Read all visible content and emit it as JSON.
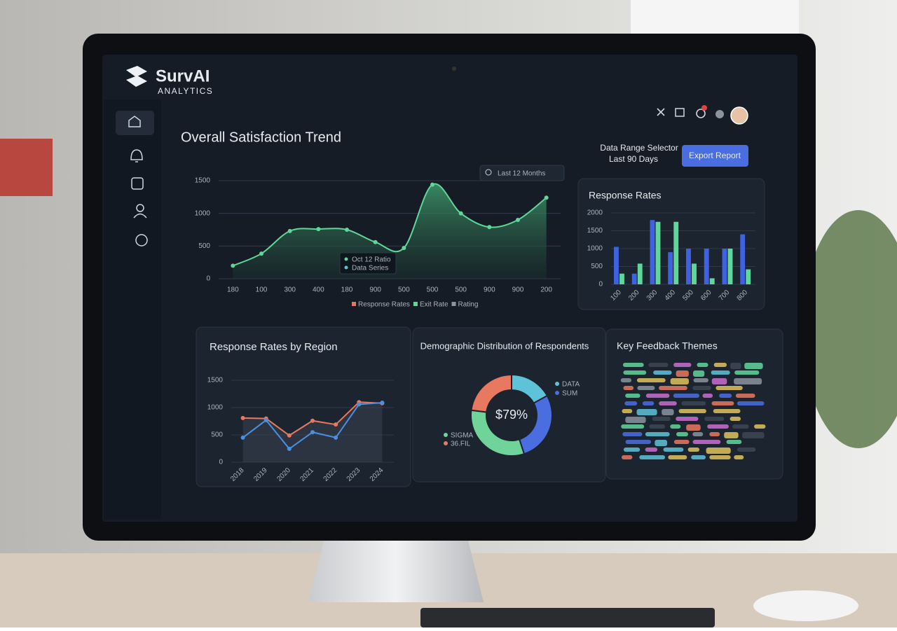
{
  "brand": {
    "name": "SurvAI",
    "tagline": "ANALYTICS"
  },
  "header": {
    "date_range_label": "Data Range Selector",
    "date_range_value": "Last 90 Days",
    "export_button": "Export Report"
  },
  "chart_data": [
    {
      "type": "area",
      "title": "Overall Satisfaction Trend",
      "filter": "Last 12 Months",
      "categories": [
        "180",
        "100",
        "300",
        "400",
        "180",
        "900",
        "500",
        "500",
        "500",
        "900",
        "900",
        "200"
      ],
      "series": [
        {
          "color": "#5fd69a",
          "values": [
            200,
            385,
            730,
            760,
            750,
            560,
            470,
            1440,
            1000,
            790,
            900,
            1240
          ]
        }
      ],
      "ylim": [
        0,
        1500
      ],
      "yticks": [
        0,
        500,
        1000,
        1500
      ],
      "grid": true,
      "tooltip": [
        "Oct 12 Ratio",
        "Data Series"
      ],
      "legend_items": [
        {
          "name": "Response Rates",
          "color": "#e07a5f"
        },
        {
          "name": "Exit Rate",
          "color": "#5fd69a"
        },
        {
          "name": "Rating",
          "color": "#8a939e"
        }
      ]
    },
    {
      "type": "bar",
      "title": "Response Rates",
      "categories": [
        "100",
        "200",
        "300",
        "400",
        "500",
        "600",
        "700",
        "800"
      ],
      "series": [
        {
          "color": "#3f63e0",
          "values": [
            1050,
            300,
            1800,
            900,
            1000,
            1000,
            1000,
            1400
          ]
        },
        {
          "color": "#5fd69a",
          "values": [
            300,
            580,
            1750,
            1750,
            580,
            170,
            1000,
            420
          ]
        }
      ],
      "ylim": [
        0,
        2000
      ],
      "yticks": [
        0,
        500,
        1000,
        1500,
        2000
      ],
      "grid": true
    },
    {
      "type": "line",
      "title": "Response Rates by Region",
      "categories": [
        "2018",
        "2019",
        "2020",
        "2021",
        "2022",
        "2023",
        "2024"
      ],
      "series": [
        {
          "color": "#e8785f",
          "values": [
            810,
            800,
            490,
            760,
            690,
            1100,
            1080
          ]
        },
        {
          "color": "#4a90e2",
          "values": [
            450,
            770,
            245,
            550,
            450,
            1060,
            1090
          ]
        }
      ],
      "ylim": [
        0,
        1500
      ],
      "yticks": [
        0,
        500,
        1000,
        1500
      ],
      "grid": true
    },
    {
      "type": "donut",
      "title": "Demographic Distribution of Respondents",
      "center_label": "$79%",
      "categories": [
        "DATA",
        "SUM",
        "SIGMA",
        "36.FIL"
      ],
      "values": [
        17,
        28,
        32,
        23
      ],
      "colors": [
        "#5ec3d8",
        "#4a6ee0",
        "#6fd39a",
        "#e8785f"
      ]
    }
  ],
  "feedback": {
    "title": "Key Feedback Themes"
  }
}
